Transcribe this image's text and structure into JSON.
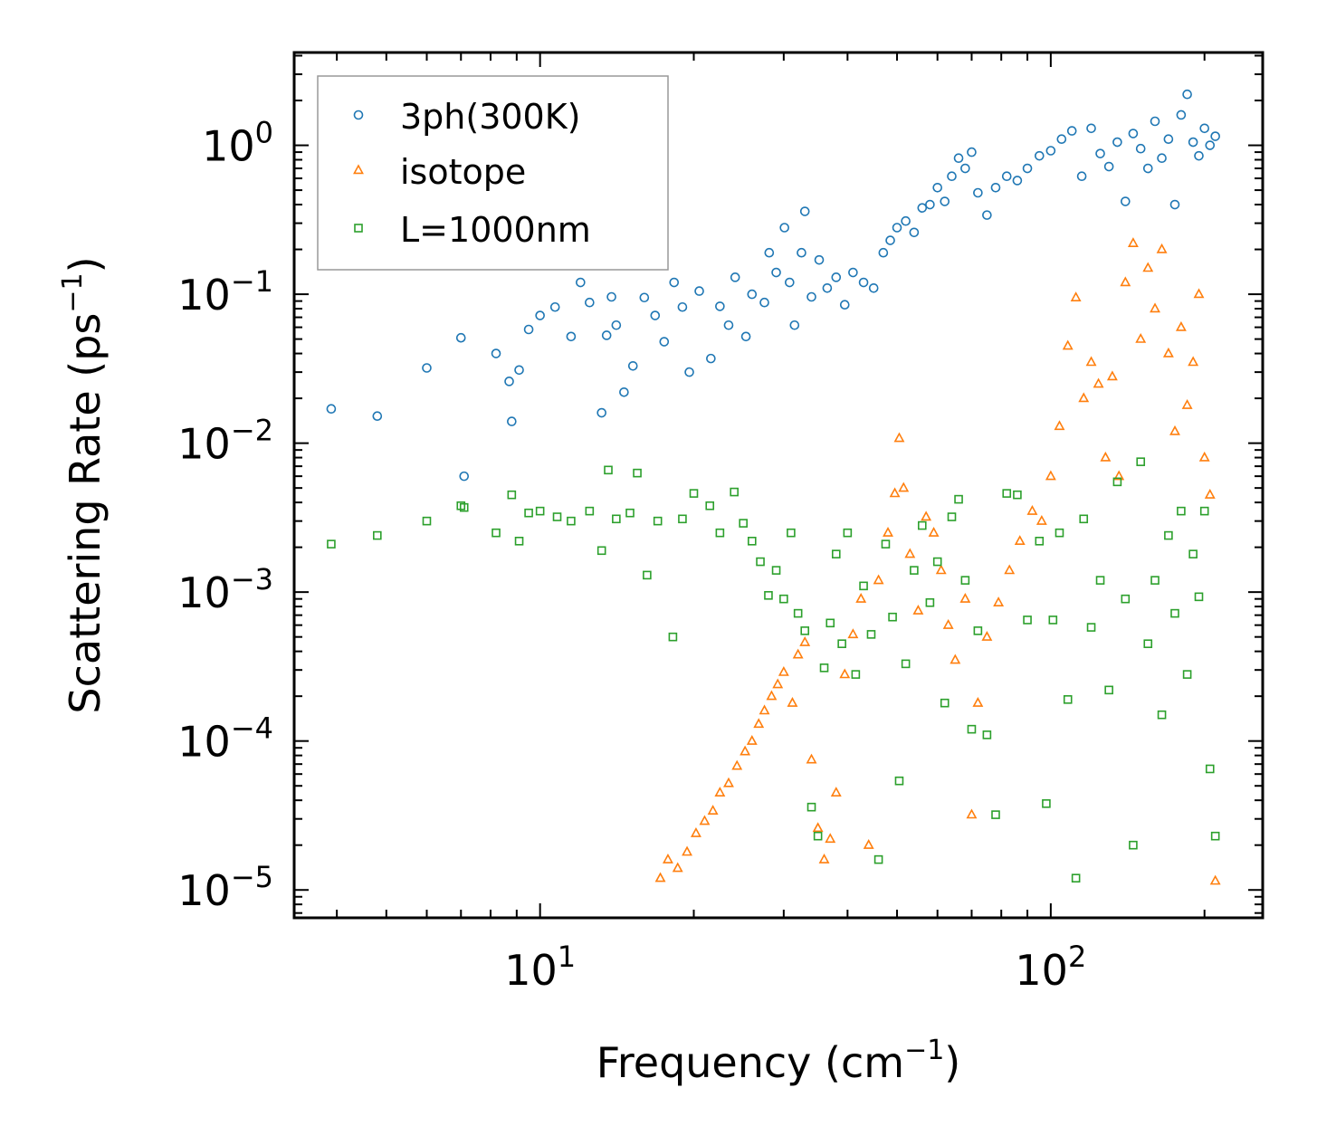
{
  "chart_data": {
    "type": "scatter",
    "title": "",
    "xlabel": "Frequency (cm",
    "xlabel_sup": "−1",
    "xlabel_end": ")",
    "ylabel": "Scattering Rate (ps",
    "ylabel_sup": "−1",
    "ylabel_end": ")",
    "xscale": "log",
    "yscale": "log",
    "xlim": [
      3.3,
      260
    ],
    "ylim": [
      6.5e-06,
      4.2
    ],
    "x_ticks": [
      {
        "base": "10",
        "exp": "1",
        "value": 10
      },
      {
        "base": "10",
        "exp": "2",
        "value": 100
      }
    ],
    "y_ticks": [
      {
        "base": "10",
        "exp": "0",
        "value": 1
      },
      {
        "base": "10",
        "exp": "−1",
        "value": 0.1
      },
      {
        "base": "10",
        "exp": "−2",
        "value": 0.01
      },
      {
        "base": "10",
        "exp": "−3",
        "value": 0.001
      },
      {
        "base": "10",
        "exp": "−4",
        "value": 0.0001
      },
      {
        "base": "10",
        "exp": "−5",
        "value": 1e-05
      }
    ],
    "legend_position": "top-left",
    "series": [
      {
        "name": "3ph(300K)",
        "marker": "circle",
        "color": "#1f77b4",
        "points": [
          [
            3.9,
            0.017
          ],
          [
            4.8,
            0.0152
          ],
          [
            6.0,
            0.032
          ],
          [
            7.0,
            0.051
          ],
          [
            7.1,
            0.006
          ],
          [
            8.2,
            0.04
          ],
          [
            8.7,
            0.026
          ],
          [
            8.8,
            0.014
          ],
          [
            9.1,
            0.031
          ],
          [
            9.5,
            0.058
          ],
          [
            10.0,
            0.072
          ],
          [
            10.7,
            0.082
          ],
          [
            11.5,
            0.052
          ],
          [
            12.0,
            0.12
          ],
          [
            12.5,
            0.088
          ],
          [
            13.2,
            0.016
          ],
          [
            13.5,
            0.053
          ],
          [
            13.8,
            0.096
          ],
          [
            14.1,
            0.062
          ],
          [
            14.6,
            0.022
          ],
          [
            15.2,
            0.033
          ],
          [
            16.0,
            0.095
          ],
          [
            16.8,
            0.072
          ],
          [
            17.5,
            0.048
          ],
          [
            18.3,
            0.12
          ],
          [
            19.0,
            0.082
          ],
          [
            19.6,
            0.03
          ],
          [
            20.5,
            0.105
          ],
          [
            21.6,
            0.037
          ],
          [
            22.5,
            0.083
          ],
          [
            23.4,
            0.062
          ],
          [
            24.1,
            0.13
          ],
          [
            25.3,
            0.052
          ],
          [
            26.0,
            0.1
          ],
          [
            27.5,
            0.088
          ],
          [
            28.1,
            0.19
          ],
          [
            29.0,
            0.14
          ],
          [
            30.1,
            0.28
          ],
          [
            30.8,
            0.12
          ],
          [
            31.5,
            0.062
          ],
          [
            32.5,
            0.19
          ],
          [
            33.0,
            0.36
          ],
          [
            34.0,
            0.096
          ],
          [
            35.2,
            0.17
          ],
          [
            36.5,
            0.11
          ],
          [
            38.0,
            0.13
          ],
          [
            39.5,
            0.085
          ],
          [
            41.0,
            0.14
          ],
          [
            43.0,
            0.12
          ],
          [
            45.0,
            0.11
          ],
          [
            47.0,
            0.19
          ],
          [
            48.5,
            0.23
          ],
          [
            50.0,
            0.28
          ],
          [
            52.0,
            0.31
          ],
          [
            54.0,
            0.26
          ],
          [
            56.0,
            0.38
          ],
          [
            58.0,
            0.4
          ],
          [
            60.0,
            0.52
          ],
          [
            62.0,
            0.42
          ],
          [
            64.0,
            0.62
          ],
          [
            66.0,
            0.82
          ],
          [
            68.0,
            0.7
          ],
          [
            70.0,
            0.9
          ],
          [
            72.0,
            0.48
          ],
          [
            75.0,
            0.34
          ],
          [
            78.0,
            0.52
          ],
          [
            82.0,
            0.62
          ],
          [
            86.0,
            0.58
          ],
          [
            90.0,
            0.7
          ],
          [
            95.0,
            0.85
          ],
          [
            100.0,
            0.92
          ],
          [
            105.0,
            1.1
          ],
          [
            110.0,
            1.25
          ],
          [
            115.0,
            0.62
          ],
          [
            120.0,
            1.3
          ],
          [
            125.0,
            0.88
          ],
          [
            130.0,
            0.72
          ],
          [
            135.0,
            1.05
          ],
          [
            140.0,
            0.42
          ],
          [
            145.0,
            1.2
          ],
          [
            150.0,
            0.95
          ],
          [
            155.0,
            0.7
          ],
          [
            160.0,
            1.45
          ],
          [
            165.0,
            0.82
          ],
          [
            170.0,
            1.1
          ],
          [
            175.0,
            0.4
          ],
          [
            180.0,
            1.6
          ],
          [
            185.0,
            2.2
          ],
          [
            190.0,
            1.05
          ],
          [
            195.0,
            0.85
          ],
          [
            200.0,
            1.3
          ],
          [
            205.0,
            1.0
          ],
          [
            210.0,
            1.15
          ]
        ]
      },
      {
        "name": "isotope",
        "marker": "triangle",
        "color": "#ff7f0e",
        "points": [
          [
            17.2,
            1.2e-05
          ],
          [
            17.8,
            1.6e-05
          ],
          [
            18.6,
            1.4e-05
          ],
          [
            19.4,
            1.8e-05
          ],
          [
            20.2,
            2.4e-05
          ],
          [
            21.0,
            2.9e-05
          ],
          [
            21.8,
            3.4e-05
          ],
          [
            22.5,
            4.5e-05
          ],
          [
            23.4,
            5.2e-05
          ],
          [
            24.3,
            6.8e-05
          ],
          [
            25.2,
            8.5e-05
          ],
          [
            26.0,
            0.0001
          ],
          [
            26.8,
            0.00013
          ],
          [
            27.5,
            0.00016
          ],
          [
            28.4,
            0.0002
          ],
          [
            29.2,
            0.00024
          ],
          [
            30.0,
            0.00029
          ],
          [
            31.2,
            0.00018
          ],
          [
            32.0,
            0.00038
          ],
          [
            33.0,
            0.00046
          ],
          [
            34.0,
            7.5e-05
          ],
          [
            35.0,
            2.6e-05
          ],
          [
            36.0,
            1.6e-05
          ],
          [
            37.0,
            2.2e-05
          ],
          [
            38.0,
            4.5e-05
          ],
          [
            39.5,
            0.00028
          ],
          [
            41.0,
            0.00052
          ],
          [
            42.5,
            0.0009
          ],
          [
            44.0,
            2e-05
          ],
          [
            46.0,
            0.0012
          ],
          [
            48.0,
            0.0025
          ],
          [
            49.5,
            0.0046
          ],
          [
            50.5,
            0.0108
          ],
          [
            51.5,
            0.005
          ],
          [
            53.0,
            0.0018
          ],
          [
            55.0,
            0.00075
          ],
          [
            57.0,
            0.0032
          ],
          [
            59.0,
            0.0025
          ],
          [
            61.0,
            0.0014
          ],
          [
            63.0,
            0.0006
          ],
          [
            65.0,
            0.00035
          ],
          [
            68.0,
            0.0009
          ],
          [
            70.0,
            3.2e-05
          ],
          [
            72.0,
            0.00018
          ],
          [
            75.0,
            0.0005
          ],
          [
            79.0,
            0.00085
          ],
          [
            83.0,
            0.0014
          ],
          [
            87.0,
            0.0022
          ],
          [
            92.0,
            0.0035
          ],
          [
            96.0,
            0.003
          ],
          [
            100.0,
            0.006
          ],
          [
            104.0,
            0.013
          ],
          [
            108.0,
            0.045
          ],
          [
            112.0,
            0.095
          ],
          [
            116.0,
            0.02
          ],
          [
            120.0,
            0.035
          ],
          [
            124.0,
            0.025
          ],
          [
            128.0,
            0.008
          ],
          [
            132.0,
            0.028
          ],
          [
            136.0,
            0.006
          ],
          [
            140.0,
            0.12
          ],
          [
            145.0,
            0.22
          ],
          [
            150.0,
            0.05
          ],
          [
            155.0,
            0.15
          ],
          [
            160.0,
            0.08
          ],
          [
            165.0,
            0.2
          ],
          [
            170.0,
            0.04
          ],
          [
            175.0,
            0.012
          ],
          [
            180.0,
            0.06
          ],
          [
            185.0,
            0.018
          ],
          [
            190.0,
            0.035
          ],
          [
            195.0,
            0.1
          ],
          [
            200.0,
            0.008
          ],
          [
            205.0,
            0.0045
          ],
          [
            210.0,
            1.15e-05
          ]
        ]
      },
      {
        "name": "L=1000nm",
        "marker": "square",
        "color": "#2ca02c",
        "points": [
          [
            3.9,
            0.0021
          ],
          [
            4.8,
            0.0024
          ],
          [
            6.0,
            0.003
          ],
          [
            7.0,
            0.0038
          ],
          [
            7.1,
            0.0037
          ],
          [
            8.2,
            0.0025
          ],
          [
            8.8,
            0.0045
          ],
          [
            9.1,
            0.0022
          ],
          [
            9.5,
            0.0034
          ],
          [
            10.0,
            0.0035
          ],
          [
            10.8,
            0.0032
          ],
          [
            11.5,
            0.003
          ],
          [
            12.5,
            0.0035
          ],
          [
            13.2,
            0.0019
          ],
          [
            13.6,
            0.0066
          ],
          [
            14.1,
            0.0031
          ],
          [
            15.0,
            0.0034
          ],
          [
            15.5,
            0.0063
          ],
          [
            16.2,
            0.0013
          ],
          [
            17.0,
            0.003
          ],
          [
            18.2,
            0.0005
          ],
          [
            19.0,
            0.0031
          ],
          [
            20.0,
            0.0046
          ],
          [
            21.5,
            0.0038
          ],
          [
            22.5,
            0.0025
          ],
          [
            24.0,
            0.0047
          ],
          [
            25.0,
            0.0029
          ],
          [
            26.0,
            0.0022
          ],
          [
            27.0,
            0.0016
          ],
          [
            28.0,
            0.00095
          ],
          [
            29.0,
            0.0014
          ],
          [
            30.0,
            0.0009
          ],
          [
            31.0,
            0.0025
          ],
          [
            32.0,
            0.00072
          ],
          [
            33.0,
            0.00055
          ],
          [
            34.0,
            3.6e-05
          ],
          [
            35.0,
            2.3e-05
          ],
          [
            36.0,
            0.00031
          ],
          [
            37.0,
            0.00062
          ],
          [
            38.0,
            0.0018
          ],
          [
            39.0,
            0.00045
          ],
          [
            40.0,
            0.0025
          ],
          [
            41.5,
            0.00028
          ],
          [
            43.0,
            0.0011
          ],
          [
            44.5,
            0.00052
          ],
          [
            46.0,
            1.6e-05
          ],
          [
            47.5,
            0.0021
          ],
          [
            49.0,
            0.00068
          ],
          [
            50.5,
            5.4e-05
          ],
          [
            52.0,
            0.00033
          ],
          [
            54.0,
            0.0014
          ],
          [
            56.0,
            0.0028
          ],
          [
            58.0,
            0.00085
          ],
          [
            60.0,
            0.0016
          ],
          [
            62.0,
            0.00018
          ],
          [
            64.0,
            0.0032
          ],
          [
            66.0,
            0.0042
          ],
          [
            68.0,
            0.0012
          ],
          [
            70.0,
            0.00012
          ],
          [
            72.0,
            0.00055
          ],
          [
            75.0,
            0.00011
          ],
          [
            78.0,
            3.2e-05
          ],
          [
            82.0,
            0.0046
          ],
          [
            86.0,
            0.0045
          ],
          [
            90.0,
            0.00065
          ],
          [
            95.0,
            0.0022
          ],
          [
            98.0,
            3.8e-05
          ],
          [
            101.0,
            0.00065
          ],
          [
            104.0,
            0.0025
          ],
          [
            108.0,
            0.00019
          ],
          [
            112.0,
            1.2e-05
          ],
          [
            116.0,
            0.0031
          ],
          [
            120.0,
            0.00058
          ],
          [
            125.0,
            0.0012
          ],
          [
            130.0,
            0.00022
          ],
          [
            135.0,
            0.0055
          ],
          [
            140.0,
            0.0009
          ],
          [
            145.0,
            2e-05
          ],
          [
            150.0,
            0.0075
          ],
          [
            155.0,
            0.00045
          ],
          [
            160.0,
            0.0012
          ],
          [
            165.0,
            0.00015
          ],
          [
            170.0,
            0.0024
          ],
          [
            175.0,
            0.00072
          ],
          [
            180.0,
            0.0035
          ],
          [
            185.0,
            0.00028
          ],
          [
            190.0,
            0.0018
          ],
          [
            195.0,
            0.00093
          ],
          [
            200.0,
            0.0035
          ],
          [
            205.0,
            6.5e-05
          ],
          [
            210.0,
            2.3e-05
          ]
        ]
      }
    ]
  }
}
